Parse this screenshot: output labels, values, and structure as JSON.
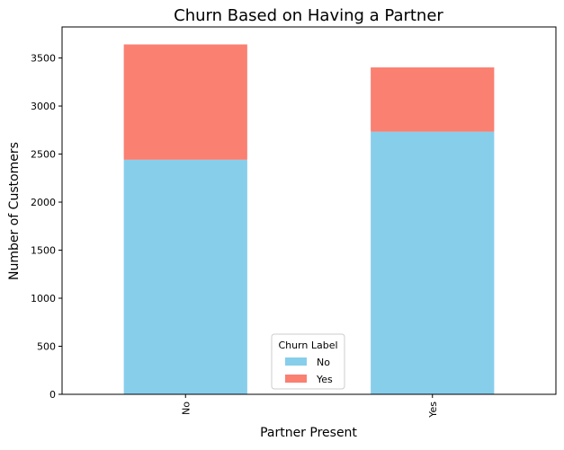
{
  "chart_data": {
    "type": "bar",
    "stacked": true,
    "title": "Churn Based on Having a Partner",
    "xlabel": "Partner Present",
    "ylabel": "Number of Customers",
    "categories": [
      "No",
      "Yes"
    ],
    "series": [
      {
        "name": "No",
        "values": [
          2441,
          2733
        ],
        "color": "#87CEEB"
      },
      {
        "name": "Yes",
        "values": [
          1200,
          669
        ],
        "color": "#FA8072"
      }
    ],
    "ylim": [
      0,
      3823
    ],
    "yticks": [
      0,
      500,
      1000,
      1500,
      2000,
      2500,
      3000,
      3500
    ],
    "grid": false,
    "legend": {
      "title": "Churn Label",
      "placement": "bottom-center"
    }
  }
}
